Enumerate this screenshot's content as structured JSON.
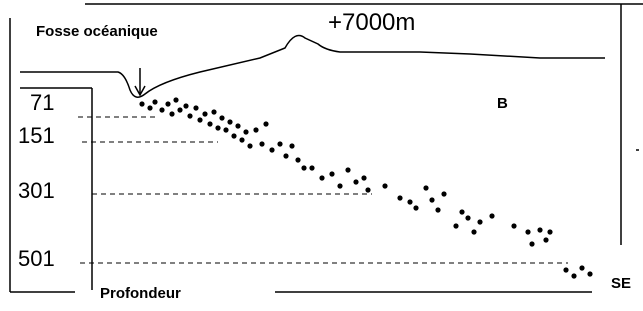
{
  "labels": {
    "trench": "Fosse océanique",
    "altitude": "+7000m",
    "zone": "B",
    "axis": "Profondeur",
    "direction": "SE"
  },
  "depths": [
    "71",
    "151",
    "301",
    "501"
  ]
}
